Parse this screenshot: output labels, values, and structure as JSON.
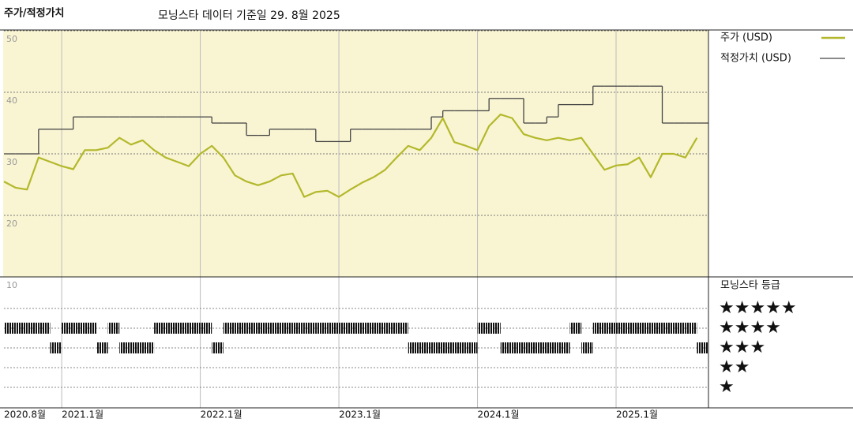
{
  "chart_data": {
    "type": "line",
    "title": "주가/적정가치",
    "subtitle": "모닝스타 데이터 기준일 29. 8월 2025",
    "x": [
      "2020-08",
      "2020-09",
      "2020-10",
      "2020-11",
      "2020-12",
      "2021-01",
      "2021-02",
      "2021-03",
      "2021-04",
      "2021-05",
      "2021-06",
      "2021-07",
      "2021-08",
      "2021-09",
      "2021-10",
      "2021-11",
      "2021-12",
      "2022-01",
      "2022-02",
      "2022-03",
      "2022-04",
      "2022-05",
      "2022-06",
      "2022-07",
      "2022-08",
      "2022-09",
      "2022-10",
      "2022-11",
      "2022-12",
      "2023-01",
      "2023-02",
      "2023-03",
      "2023-04",
      "2023-05",
      "2023-06",
      "2023-07",
      "2023-08",
      "2023-09",
      "2023-10",
      "2023-11",
      "2023-12",
      "2024-01",
      "2024-02",
      "2024-03",
      "2024-04",
      "2024-05",
      "2024-06",
      "2024-07",
      "2024-08",
      "2024-09",
      "2024-10",
      "2024-11",
      "2024-12",
      "2025-01",
      "2025-02",
      "2025-03",
      "2025-04",
      "2025-05",
      "2025-06",
      "2025-07",
      "2025-08"
    ],
    "xticks": [
      {
        "value": "2020-08",
        "label": "2020.8월"
      },
      {
        "value": "2021-01",
        "label": "2021.1월"
      },
      {
        "value": "2022-01",
        "label": "2022.1월"
      },
      {
        "value": "2023-01",
        "label": "2023.1월"
      },
      {
        "value": "2024-01",
        "label": "2024.1월"
      },
      {
        "value": "2025-01",
        "label": "2025.1월"
      }
    ],
    "ylim": [
      10,
      50
    ],
    "yticks": [
      10,
      20,
      30,
      40,
      50
    ],
    "grid": true,
    "series": [
      {
        "name": "주가 (USD)",
        "color": "#b3b82b",
        "values": [
          25.5,
          24.5,
          24.2,
          29.4,
          28.7,
          28,
          27.5,
          30.6,
          30.6,
          31,
          32.6,
          31.5,
          32.2,
          30.6,
          29.4,
          28.7,
          28,
          30,
          31.3,
          29.4,
          26.5,
          25.5,
          24.9,
          25.5,
          26.5,
          26.8,
          23,
          23.8,
          24,
          23,
          24.2,
          25.3,
          26.2,
          27.4,
          29.4,
          31.3,
          30.6,
          32.6,
          35.8,
          31.9,
          31.3,
          30.6,
          34.5,
          36.4,
          35.8,
          33.2,
          32.6,
          32.2,
          32.6,
          32.2,
          32.6,
          30,
          27.4,
          28.1,
          28.3,
          29.4,
          26.2,
          30,
          30,
          29.4,
          32.6
        ]
      },
      {
        "name": "적정가치 (USD)",
        "color": "#444444",
        "step": true,
        "values": [
          30,
          30,
          30,
          34,
          34,
          34,
          36,
          36,
          36,
          36,
          36,
          36,
          36,
          36,
          36,
          36,
          36,
          36,
          35,
          35,
          35,
          33,
          33,
          34,
          34,
          34,
          34,
          32,
          32,
          32,
          34,
          34,
          34,
          34,
          34,
          34,
          34,
          36,
          37,
          37,
          37,
          37,
          39,
          39,
          39,
          35,
          35,
          36,
          38,
          38,
          38,
          41,
          41,
          41,
          41,
          41,
          41,
          35,
          35,
          35,
          35
        ]
      }
    ],
    "rating": {
      "name": "모닝스타 등급",
      "color": "#111111",
      "values": [
        4,
        4,
        4,
        4,
        3,
        4,
        4,
        4,
        3,
        4,
        3,
        3,
        3,
        4,
        4,
        4,
        4,
        4,
        3,
        4,
        4,
        4,
        4,
        4,
        4,
        4,
        4,
        4,
        4,
        4,
        4,
        4,
        4,
        4,
        4,
        3,
        3,
        3,
        3,
        3,
        3,
        4,
        4,
        3,
        3,
        3,
        3,
        3,
        3,
        4,
        3,
        4,
        4,
        4,
        4,
        4,
        4,
        4,
        4,
        4,
        3
      ],
      "ticks": [
        {
          "value": 5,
          "label": "★★★★★"
        },
        {
          "value": 4,
          "label": "★★★★"
        },
        {
          "value": 3,
          "label": "★★★"
        },
        {
          "value": 2,
          "label": "★★"
        },
        {
          "value": 1,
          "label": "★"
        }
      ]
    }
  }
}
